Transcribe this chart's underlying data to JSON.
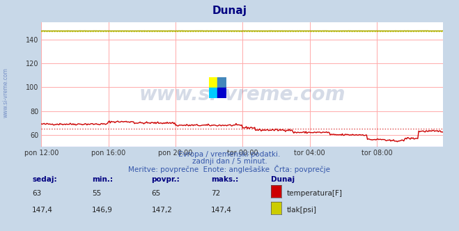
{
  "title": "Dunaj",
  "title_color": "#000080",
  "bg_color": "#c8d8e8",
  "plot_bg_color": "#ffffff",
  "grid_color": "#ffaaaa",
  "x_labels": [
    "pon 12:00",
    "pon 16:00",
    "pon 20:00",
    "tor 00:00",
    "tor 04:00",
    "tor 08:00"
  ],
  "x_ticks": [
    0,
    72,
    144,
    216,
    288,
    360
  ],
  "total_points": 432,
  "ylim": [
    50,
    155
  ],
  "yticks": [
    60,
    80,
    100,
    120,
    140
  ],
  "temp_color": "#cc0000",
  "pressure_color": "#aaaa00",
  "temp_avg_color": "#dd4444",
  "pressure_avg_color": "#cccc00",
  "watermark_text": "www.si-vreme.com",
  "watermark_color": "#1a3a7a",
  "watermark_alpha": 0.18,
  "subtitle1": "Evropa / vremenski podatki.",
  "subtitle2": "zadnji dan / 5 minut.",
  "subtitle3": "Meritve: povprečne  Enote: anglešaške  Črta: povprečje",
  "subtitle_color": "#3355aa",
  "legend_header": "Dunaj",
  "legend_color": "#000080",
  "stat_labels": [
    "sedaj:",
    "min.:",
    "povpr.:",
    "maks.:"
  ],
  "temp_stats": [
    "63",
    "55",
    "65",
    "72"
  ],
  "pressure_stats": [
    "147,4",
    "146,9",
    "147,2",
    "147,4"
  ],
  "temp_label": "temperatura[F]",
  "pressure_label": "tlak[psi]",
  "temp_box_color": "#cc0000",
  "pressure_box_color": "#cccc00",
  "ylabel_text": "www.si-vreme.com",
  "ylabel_color": "#3355aa",
  "temp_avg": 65,
  "pressure_avg": 147.2
}
